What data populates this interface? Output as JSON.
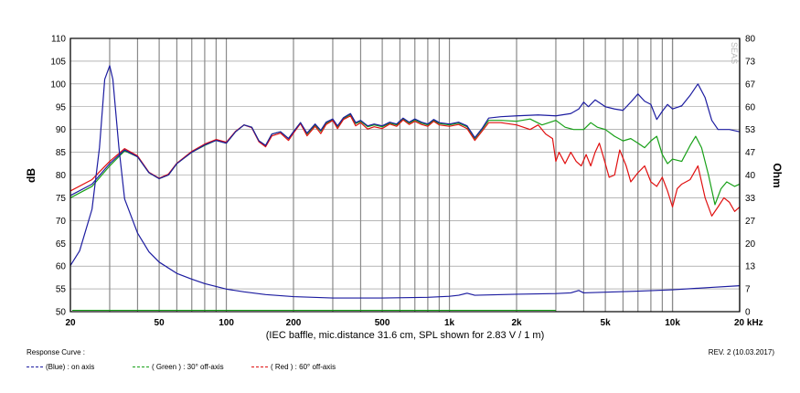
{
  "footer": {
    "response_curve_label": "Response Curve :",
    "revision": "REV. 2 (10.03.2017)"
  },
  "legend": [
    {
      "text": "(Blue)  : on axis",
      "color": "#1c1ca0"
    },
    {
      "text": "( Green ) : 30° off-axis",
      "color": "#17a017"
    },
    {
      "text": "( Red ) : 60° off-axis",
      "color": "#e01010"
    }
  ],
  "chart_data": {
    "type": "line",
    "title": "",
    "xlabel": "(IEC baffle, mic.distance 31.6 cm, SPL shown for 2.83 V / 1 m)",
    "ylabel": "dB",
    "y2label": "Ohm",
    "x_scale": "log",
    "xlim": [
      20,
      20000
    ],
    "ylim": [
      50,
      110
    ],
    "y2lim": [
      0,
      80
    ],
    "grid": true,
    "watermark": "SEAS",
    "x_tick_labels": [
      "20",
      "50",
      "100",
      "200",
      "500",
      "1k",
      "2k",
      "5k",
      "10k",
      "20 kHz"
    ],
    "x_tick_values": [
      20,
      50,
      100,
      200,
      500,
      1000,
      2000,
      5000,
      10000,
      20000
    ],
    "y_ticks": [
      50,
      55,
      60,
      65,
      70,
      75,
      80,
      85,
      90,
      95,
      100,
      105,
      110
    ],
    "y2_ticks": [
      "0",
      "7",
      "13",
      "20",
      "27",
      "33",
      "40",
      "47",
      "53",
      "60",
      "67",
      "73",
      "80"
    ],
    "series": [
      {
        "name": "(Blue)  : on axis",
        "axis": "spl",
        "color": "#1c1ca0",
        "points": [
          [
            20,
            75.5
          ],
          [
            25,
            78
          ],
          [
            30,
            82.5
          ],
          [
            35,
            85.5
          ],
          [
            40,
            84
          ],
          [
            45,
            80.5
          ],
          [
            50,
            79.2
          ],
          [
            55,
            80
          ],
          [
            60,
            82.5
          ],
          [
            70,
            85
          ],
          [
            80,
            86.6
          ],
          [
            90,
            87.6
          ],
          [
            100,
            87
          ],
          [
            110,
            89.5
          ],
          [
            120,
            91
          ],
          [
            130,
            90.5
          ],
          [
            140,
            87.5
          ],
          [
            150,
            86.5
          ],
          [
            160,
            89
          ],
          [
            175,
            89.5
          ],
          [
            190,
            88
          ],
          [
            200,
            89.5
          ],
          [
            215,
            91.5
          ],
          [
            230,
            89.2
          ],
          [
            250,
            91.2
          ],
          [
            265,
            89.8
          ],
          [
            280,
            91.6
          ],
          [
            300,
            92.3
          ],
          [
            315,
            90.8
          ],
          [
            335,
            92.6
          ],
          [
            360,
            93.5
          ],
          [
            380,
            91.5
          ],
          [
            400,
            92
          ],
          [
            430,
            90.8
          ],
          [
            460,
            91.2
          ],
          [
            500,
            90.8
          ],
          [
            540,
            91.6
          ],
          [
            580,
            91.2
          ],
          [
            620,
            92.5
          ],
          [
            660,
            91.6
          ],
          [
            700,
            92.3
          ],
          [
            750,
            91.6
          ],
          [
            800,
            91.2
          ],
          [
            850,
            92.2
          ],
          [
            900,
            91.5
          ],
          [
            1000,
            91.2
          ],
          [
            1100,
            91.6
          ],
          [
            1200,
            90.8
          ],
          [
            1300,
            88.2
          ],
          [
            1400,
            90.2
          ],
          [
            1500,
            92.5
          ],
          [
            1700,
            92.8
          ],
          [
            2000,
            93
          ],
          [
            2500,
            93.2
          ],
          [
            3000,
            93
          ],
          [
            3500,
            93.5
          ],
          [
            3800,
            94.5
          ],
          [
            4000,
            96
          ],
          [
            4200,
            95
          ],
          [
            4500,
            96.5
          ],
          [
            5000,
            95
          ],
          [
            5500,
            94.5
          ],
          [
            6000,
            94.2
          ],
          [
            6500,
            96
          ],
          [
            7000,
            97.8
          ],
          [
            7500,
            96.2
          ],
          [
            8000,
            95.5
          ],
          [
            8500,
            92.2
          ],
          [
            9000,
            94
          ],
          [
            9500,
            95.5
          ],
          [
            10000,
            94.5
          ],
          [
            11000,
            95.2
          ],
          [
            12000,
            97.5
          ],
          [
            13000,
            100
          ],
          [
            14000,
            97
          ],
          [
            15000,
            92
          ],
          [
            16000,
            90
          ],
          [
            18000,
            90
          ],
          [
            20000,
            89.5
          ]
        ]
      },
      {
        "name": "( Green ) : 30° off-axis",
        "axis": "spl",
        "color": "#17a017",
        "points": [
          [
            20,
            75
          ],
          [
            25,
            77.5
          ],
          [
            30,
            82
          ],
          [
            35,
            85.3
          ],
          [
            40,
            84
          ],
          [
            45,
            80.5
          ],
          [
            50,
            79.2
          ],
          [
            55,
            80
          ],
          [
            60,
            82.5
          ],
          [
            70,
            85
          ],
          [
            80,
            86.5
          ],
          [
            90,
            87.6
          ],
          [
            100,
            87
          ],
          [
            110,
            89.5
          ],
          [
            120,
            91
          ],
          [
            130,
            90.5
          ],
          [
            140,
            87.5
          ],
          [
            150,
            86.5
          ],
          [
            160,
            89
          ],
          [
            175,
            89.5
          ],
          [
            190,
            88
          ],
          [
            200,
            89.5
          ],
          [
            215,
            91.5
          ],
          [
            230,
            89
          ],
          [
            250,
            91
          ],
          [
            265,
            89.6
          ],
          [
            280,
            91.4
          ],
          [
            300,
            92.2
          ],
          [
            315,
            90.6
          ],
          [
            335,
            92.4
          ],
          [
            360,
            93.3
          ],
          [
            380,
            91.3
          ],
          [
            400,
            91.8
          ],
          [
            430,
            90.6
          ],
          [
            460,
            91
          ],
          [
            500,
            90.6
          ],
          [
            540,
            91.4
          ],
          [
            580,
            91
          ],
          [
            620,
            92.3
          ],
          [
            660,
            91.4
          ],
          [
            700,
            92.1
          ],
          [
            750,
            91.4
          ],
          [
            800,
            91
          ],
          [
            850,
            92
          ],
          [
            900,
            91.3
          ],
          [
            1000,
            91
          ],
          [
            1100,
            91.4
          ],
          [
            1200,
            90.6
          ],
          [
            1300,
            88
          ],
          [
            1400,
            90
          ],
          [
            1500,
            92
          ],
          [
            1700,
            92
          ],
          [
            2000,
            91.8
          ],
          [
            2300,
            92.3
          ],
          [
            2600,
            91
          ],
          [
            3000,
            92
          ],
          [
            3300,
            90.5
          ],
          [
            3600,
            90
          ],
          [
            4000,
            90
          ],
          [
            4300,
            91.5
          ],
          [
            4600,
            90.5
          ],
          [
            5000,
            90
          ],
          [
            5500,
            88.5
          ],
          [
            6000,
            87.5
          ],
          [
            6500,
            88
          ],
          [
            7000,
            87
          ],
          [
            7500,
            86
          ],
          [
            8000,
            87.5
          ],
          [
            8500,
            88.5
          ],
          [
            9000,
            84.5
          ],
          [
            9500,
            82.5
          ],
          [
            10000,
            83.5
          ],
          [
            11000,
            83
          ],
          [
            12000,
            86.5
          ],
          [
            12700,
            88.5
          ],
          [
            13500,
            86
          ],
          [
            14500,
            80
          ],
          [
            15500,
            73.5
          ],
          [
            16500,
            77
          ],
          [
            17500,
            78.5
          ],
          [
            19000,
            77.5
          ],
          [
            20000,
            78
          ]
        ]
      },
      {
        "name": "( Red ) : 60° off-axis",
        "axis": "spl",
        "color": "#e01010",
        "points": [
          [
            20,
            76.5
          ],
          [
            25,
            79
          ],
          [
            30,
            83
          ],
          [
            35,
            85.8
          ],
          [
            40,
            84.2
          ],
          [
            45,
            80.6
          ],
          [
            50,
            79.3
          ],
          [
            55,
            80.2
          ],
          [
            60,
            82.6
          ],
          [
            70,
            85.2
          ],
          [
            80,
            86.8
          ],
          [
            90,
            87.8
          ],
          [
            100,
            87.2
          ],
          [
            110,
            89.6
          ],
          [
            120,
            91
          ],
          [
            130,
            90.4
          ],
          [
            140,
            87.3
          ],
          [
            150,
            86.2
          ],
          [
            160,
            88.6
          ],
          [
            175,
            89.2
          ],
          [
            190,
            87.6
          ],
          [
            200,
            89.2
          ],
          [
            215,
            91.3
          ],
          [
            230,
            88.6
          ],
          [
            250,
            90.7
          ],
          [
            265,
            89.1
          ],
          [
            280,
            91.1
          ],
          [
            300,
            92
          ],
          [
            315,
            90.2
          ],
          [
            335,
            92.2
          ],
          [
            360,
            93
          ],
          [
            380,
            90.8
          ],
          [
            400,
            91.5
          ],
          [
            430,
            90.1
          ],
          [
            460,
            90.6
          ],
          [
            500,
            90.2
          ],
          [
            540,
            91.2
          ],
          [
            580,
            90.7
          ],
          [
            620,
            92.1
          ],
          [
            660,
            91.1
          ],
          [
            700,
            91.8
          ],
          [
            750,
            91.1
          ],
          [
            800,
            90.7
          ],
          [
            850,
            91.8
          ],
          [
            900,
            91
          ],
          [
            1000,
            90.7
          ],
          [
            1100,
            91.1
          ],
          [
            1200,
            90.2
          ],
          [
            1300,
            87.6
          ],
          [
            1400,
            89.6
          ],
          [
            1500,
            91.5
          ],
          [
            1700,
            91.5
          ],
          [
            2000,
            91
          ],
          [
            2300,
            90
          ],
          [
            2500,
            91
          ],
          [
            2700,
            89
          ],
          [
            2900,
            88
          ],
          [
            3000,
            83
          ],
          [
            3100,
            85
          ],
          [
            3300,
            82.5
          ],
          [
            3500,
            85
          ],
          [
            3700,
            83
          ],
          [
            3900,
            82
          ],
          [
            4100,
            84.5
          ],
          [
            4300,
            82
          ],
          [
            4500,
            85
          ],
          [
            4700,
            87
          ],
          [
            4900,
            84
          ],
          [
            5200,
            79.5
          ],
          [
            5500,
            80
          ],
          [
            5800,
            85.5
          ],
          [
            6200,
            82
          ],
          [
            6500,
            78.5
          ],
          [
            7000,
            80.5
          ],
          [
            7500,
            82
          ],
          [
            8000,
            78.5
          ],
          [
            8500,
            77.5
          ],
          [
            9000,
            79.5
          ],
          [
            9500,
            76.5
          ],
          [
            10000,
            73
          ],
          [
            10500,
            77
          ],
          [
            11000,
            78
          ],
          [
            12000,
            79
          ],
          [
            13000,
            82
          ],
          [
            14000,
            75
          ],
          [
            15000,
            71
          ],
          [
            16000,
            73
          ],
          [
            17000,
            75
          ],
          [
            18000,
            74
          ],
          [
            19000,
            72
          ],
          [
            20000,
            73
          ]
        ]
      },
      {
        "name": "Impedance",
        "axis": "ohm",
        "color": "#1c1ca0",
        "points": [
          [
            20,
            13.5
          ],
          [
            22,
            17.8
          ],
          [
            25,
            30
          ],
          [
            27,
            48
          ],
          [
            28.5,
            68
          ],
          [
            30,
            72
          ],
          [
            31,
            68
          ],
          [
            33,
            48
          ],
          [
            35,
            33
          ],
          [
            40,
            23
          ],
          [
            45,
            17.5
          ],
          [
            50,
            14.5
          ],
          [
            60,
            11.2
          ],
          [
            70,
            9.5
          ],
          [
            80,
            8.2
          ],
          [
            100,
            6.6
          ],
          [
            120,
            5.8
          ],
          [
            150,
            5.0
          ],
          [
            200,
            4.4
          ],
          [
            300,
            4.0
          ],
          [
            500,
            4.0
          ],
          [
            800,
            4.2
          ],
          [
            1000,
            4.5
          ],
          [
            1100,
            4.8
          ],
          [
            1200,
            5.4
          ],
          [
            1300,
            4.8
          ],
          [
            1500,
            4.9
          ],
          [
            2000,
            5.1
          ],
          [
            3000,
            5.3
          ],
          [
            3500,
            5.5
          ],
          [
            3800,
            6.2
          ],
          [
            4000,
            5.5
          ],
          [
            5000,
            5.7
          ],
          [
            7000,
            6.0
          ],
          [
            10000,
            6.4
          ],
          [
            15000,
            7.1
          ],
          [
            20000,
            7.6
          ]
        ]
      }
    ]
  }
}
